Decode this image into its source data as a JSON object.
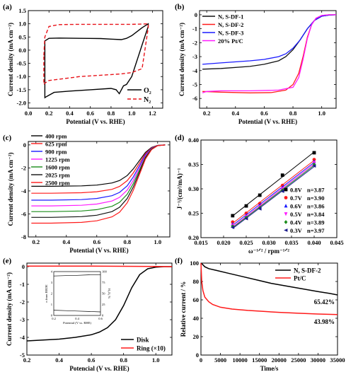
{
  "figure": {
    "label_font_color": "#000000"
  },
  "chart_data": [
    {
      "panel": "(a)",
      "type": "line",
      "xlabel": "Potential (V vs. RHE)",
      "ylabel": "Current density (mA cm⁻²)",
      "xlim": [
        0.0,
        1.3
      ],
      "ylim": [
        -2.2,
        1.5
      ],
      "xticks": [
        0.0,
        0.2,
        0.4,
        0.6,
        0.8,
        1.0,
        1.2
      ],
      "yticks": [
        -2.0,
        -1.5,
        -1.0,
        -0.5,
        0.0,
        0.5,
        1.0,
        1.5
      ],
      "ytick_labels": [
        "-2.0",
        "-1.5",
        "-1.0",
        "-0.5",
        "0.0",
        "0.5",
        "1.0",
        "1.5"
      ],
      "xtick_labels": [
        "0.0",
        "0.2",
        "0.4",
        "0.6",
        "0.8",
        "1.0",
        "1.2"
      ],
      "legend": {
        "position": "bottom-right",
        "entries": [
          "O₂",
          "N₂"
        ]
      },
      "series": [
        {
          "name": "O₂",
          "color": "#000000",
          "dash": false,
          "closed": true,
          "x": [
            0.16,
            0.16,
            0.2,
            0.3,
            0.5,
            0.7,
            0.8,
            0.9,
            0.95,
            1.0,
            1.05,
            1.1,
            1.16,
            1.16,
            1.1,
            1.0,
            0.95,
            0.92,
            0.88,
            0.85,
            0.8,
            0.6,
            0.4,
            0.25,
            0.18,
            0.16
          ],
          "y": [
            0.1,
            0.35,
            0.45,
            0.46,
            0.45,
            0.44,
            0.42,
            0.4,
            0.45,
            0.55,
            0.7,
            0.85,
            1.0,
            0.9,
            0.2,
            -1.0,
            -1.3,
            -1.35,
            -1.65,
            -1.5,
            -1.45,
            -1.5,
            -1.55,
            -1.6,
            -1.75,
            -1.8
          ]
        },
        {
          "name": "N₂",
          "color": "#e8131a",
          "dash": true,
          "closed": true,
          "x": [
            0.15,
            0.16,
            0.2,
            0.3,
            0.5,
            0.7,
            0.9,
            1.0,
            1.1,
            1.16,
            1.16,
            1.1,
            1.0,
            0.9,
            0.7,
            0.5,
            0.3,
            0.2,
            0.16,
            0.15
          ],
          "y": [
            -0.2,
            0.5,
            0.9,
            0.97,
            0.98,
            0.98,
            0.98,
            0.98,
            0.99,
            1.0,
            0.85,
            -0.7,
            -0.85,
            -0.9,
            -0.95,
            -1.0,
            -1.1,
            -1.15,
            -1.25,
            -1.3
          ]
        }
      ]
    },
    {
      "panel": "(b)",
      "type": "line",
      "xlabel": "Potential (V vs. RHE)",
      "ylabel": "Current density (mA cm⁻²)",
      "xlim": [
        0.15,
        1.1
      ],
      "ylim": [
        -6.7,
        0.3
      ],
      "xticks": [
        0.2,
        0.4,
        0.6,
        0.8,
        1.0
      ],
      "xtick_labels": [
        "0.2",
        "0.4",
        "0.6",
        "0.8",
        "1.0"
      ],
      "yticks": [
        -6,
        -5,
        -4,
        -3,
        -2,
        -1,
        0
      ],
      "ytick_labels": [
        "-6",
        "-5",
        "-4",
        "-3",
        "-2",
        "-1",
        "0"
      ],
      "legend": {
        "position": "top-left",
        "entries": [
          "N, S-DF-1",
          "N, S-DF-2",
          "N, S-DF-3",
          "20% Pt/C"
        ]
      },
      "series": [
        {
          "name": "N, S-DF-1",
          "color": "#111111",
          "x": [
            0.17,
            0.3,
            0.5,
            0.6,
            0.7,
            0.75,
            0.8,
            0.85,
            0.9,
            0.95,
            1.0,
            1.05,
            1.1
          ],
          "y": [
            -3.9,
            -3.85,
            -3.7,
            -3.55,
            -3.3,
            -3.0,
            -2.5,
            -1.8,
            -1.0,
            -0.4,
            -0.1,
            -0.02,
            0.0
          ]
        },
        {
          "name": "N, S-DF-2",
          "color": "#ff1a1a",
          "x": [
            0.17,
            0.3,
            0.5,
            0.65,
            0.75,
            0.8,
            0.84,
            0.87,
            0.9,
            0.93,
            0.96,
            1.0,
            1.05,
            1.1
          ],
          "y": [
            -5.5,
            -5.55,
            -5.6,
            -5.58,
            -5.4,
            -5.0,
            -4.2,
            -3.0,
            -1.6,
            -0.7,
            -0.25,
            -0.05,
            0.0,
            0.0
          ]
        },
        {
          "name": "N, S-DF-3",
          "color": "#1a1aff",
          "x": [
            0.17,
            0.3,
            0.5,
            0.6,
            0.7,
            0.75,
            0.8,
            0.85,
            0.9,
            0.95,
            1.0,
            1.05,
            1.1
          ],
          "y": [
            -3.55,
            -3.45,
            -3.3,
            -3.2,
            -3.0,
            -2.8,
            -2.4,
            -1.8,
            -1.0,
            -0.4,
            -0.1,
            -0.02,
            0.0
          ]
        },
        {
          "name": "20% Pt/C",
          "color": "#ff1aff",
          "x": [
            0.17,
            0.2,
            0.3,
            0.5,
            0.7,
            0.8,
            0.84,
            0.87,
            0.9,
            0.93,
            0.96,
            1.0,
            1.05,
            1.1
          ],
          "y": [
            -5.6,
            -5.5,
            -5.45,
            -5.45,
            -5.4,
            -5.2,
            -4.5,
            -3.2,
            -1.7,
            -0.7,
            -0.25,
            -0.05,
            0.0,
            0.0
          ]
        }
      ]
    },
    {
      "panel": "(c)",
      "type": "line",
      "xlabel": "Potential (V vs. RHE)",
      "ylabel": "Current density (mA cm⁻²)",
      "xlim": [
        0.15,
        1.08
      ],
      "ylim": [
        -8,
        0.3
      ],
      "xticks": [
        0.2,
        0.4,
        0.6,
        0.8,
        1.0
      ],
      "xtick_labels": [
        "0.2",
        "0.4",
        "0.6",
        "0.8",
        "1.0"
      ],
      "yticks": [
        -8,
        -6,
        -4,
        -2,
        0
      ],
      "ytick_labels": [
        "-8",
        "-6",
        "-4",
        "-2",
        "0"
      ],
      "legend": {
        "position": "top-left",
        "entries": [
          "400 rpm",
          "625 rpm",
          "900 rpm",
          "1225 rpm",
          "1600 rpm",
          "2025 rpm",
          "2500 rpm"
        ]
      },
      "series": [
        {
          "name": "400 rpm",
          "color": "#000000",
          "plateau": -3.6
        },
        {
          "name": "625 rpm",
          "color": "#ff1a1a",
          "plateau": -4.2
        },
        {
          "name": "900 rpm",
          "color": "#1a1aff",
          "plateau": -4.8
        },
        {
          "name": "1225 rpm",
          "color": "#ff1aff",
          "plateau": -5.3
        },
        {
          "name": "1600 rpm",
          "color": "#1a8c1a",
          "plateau": -5.8
        },
        {
          "name": "2025 rpm",
          "color": "#111111",
          "plateau": -6.3
        },
        {
          "name": "2500 rpm",
          "color": "#ff1a1a",
          "plateau": -6.8
        }
      ],
      "shape": {
        "x": [
          0.17,
          0.3,
          0.5,
          0.6,
          0.7,
          0.75,
          0.8,
          0.84,
          0.88,
          0.92,
          0.96,
          1.0,
          1.05
        ],
        "frac": [
          1.0,
          1.0,
          0.99,
          0.97,
          0.92,
          0.86,
          0.74,
          0.58,
          0.38,
          0.18,
          0.06,
          0.01,
          0.0
        ]
      }
    },
    {
      "panel": "(d)",
      "type": "scatter",
      "xlabel": "ω⁻¹ᐟ² / rpm⁻¹ᐟ²",
      "ylabel": "J⁻¹/(cm²/mA)⁻¹",
      "xlim": [
        0.015,
        0.045
      ],
      "ylim": [
        0.2,
        0.4
      ],
      "xticks": [
        0.015,
        0.02,
        0.025,
        0.03,
        0.035,
        0.04,
        0.045
      ],
      "xtick_labels": [
        "0.015",
        "0.020",
        "0.025",
        "0.030",
        "0.035",
        "0.040",
        "0.045"
      ],
      "yticks": [
        0.2,
        0.25,
        0.3,
        0.35,
        0.4
      ],
      "ytick_labels": [
        "0.20",
        "0.25",
        "0.30",
        "0.35",
        "0.40"
      ],
      "legend": {
        "position": "bottom-right"
      },
      "x": [
        0.022,
        0.025,
        0.028,
        0.033,
        0.04
      ],
      "series": [
        {
          "name": "0.8V",
          "n_label": "n=3.87",
          "color": "#000000",
          "marker": "square",
          "y": [
            0.245,
            0.265,
            0.287,
            0.328,
            0.374
          ]
        },
        {
          "name": "0.7V",
          "n_label": "n=3.90",
          "color": "#ff1a1a",
          "marker": "circle",
          "y": [
            0.232,
            0.25,
            0.27,
            0.307,
            0.36
          ]
        },
        {
          "name": "0.6V",
          "n_label": "n=3.86",
          "color": "#1a1aff",
          "marker": "triangle-up",
          "y": [
            0.228,
            0.246,
            0.266,
            0.303,
            0.356
          ]
        },
        {
          "name": "0.5V",
          "n_label": "n=3.84",
          "color": "#ff1aff",
          "marker": "triangle-down",
          "y": [
            0.225,
            0.243,
            0.263,
            0.3,
            0.353
          ]
        },
        {
          "name": "0.4V",
          "n_label": "n=3.89",
          "color": "#1a8c1a",
          "marker": "diamond",
          "y": [
            0.223,
            0.241,
            0.261,
            0.297,
            0.35
          ]
        },
        {
          "name": "0.3V",
          "n_label": "n=3.97",
          "color": "#1a1a8c",
          "marker": "triangle-left",
          "y": [
            0.221,
            0.239,
            0.259,
            0.295,
            0.347
          ]
        }
      ]
    },
    {
      "panel": "(e)",
      "type": "line",
      "xlabel": "Potencial (V vs. RHE)",
      "ylabel": "Current density (mA cm⁻²)",
      "xlim": [
        0.2,
        1.1
      ],
      "ylim": [
        -5,
        0.2
      ],
      "xticks": [
        0.2,
        0.4,
        0.6,
        0.8,
        1.0
      ],
      "xtick_labels": [
        "0.2",
        "0.4",
        "0.6",
        "0.8",
        "1.0"
      ],
      "yticks": [
        -5,
        -4,
        -3,
        -2,
        -1,
        0
      ],
      "ytick_labels": [
        "-5",
        "-4",
        "-3",
        "-2",
        "-1",
        "0"
      ],
      "legend": {
        "position": "bottom-right",
        "entries": [
          "Disk",
          "Ring (×10)"
        ]
      },
      "series": [
        {
          "name": "Disk",
          "color": "#000000",
          "x": [
            0.2,
            0.3,
            0.4,
            0.5,
            0.6,
            0.65,
            0.7,
            0.75,
            0.8,
            0.85,
            0.9,
            0.95,
            1.0,
            1.05,
            1.1
          ],
          "y": [
            -4.2,
            -4.15,
            -4.1,
            -4.0,
            -3.85,
            -3.7,
            -3.45,
            -3.0,
            -2.2,
            -1.2,
            -0.45,
            -0.12,
            -0.03,
            0.0,
            0.0
          ]
        },
        {
          "name": "Ring (×10)",
          "color": "#ff1a1a",
          "x": [
            0.2,
            0.4,
            0.6,
            0.8,
            1.0,
            1.1
          ],
          "y": [
            0.03,
            0.03,
            0.03,
            0.02,
            0.01,
            0.0
          ]
        }
      ],
      "inset": {
        "xlabel": "Potential (V vs. RHE)",
        "ylabel_left": "n from RRDE",
        "ylabel_right": "H₂O₂ %",
        "xlim": [
          0.2,
          0.6
        ],
        "ylim_left": [
          0,
          4
        ],
        "ylim_right": [
          0,
          100
        ],
        "xticks": [
          0.2,
          0.3,
          0.4,
          0.5,
          0.6
        ],
        "xtick_labels": [
          "0.2",
          "0.3",
          "0.4",
          "0.5",
          "0.6"
        ],
        "yticks_left": [
          0,
          1,
          2,
          3,
          4
        ],
        "ytick_labels_left": [
          "0",
          "1",
          "2",
          "3",
          "4"
        ],
        "yticks_right": [
          0,
          25,
          50,
          75,
          100
        ],
        "ytick_labels_right": [
          "0",
          "25",
          "50",
          "75",
          "100"
        ],
        "n_series": {
          "x": [
            0.2,
            0.3,
            0.4,
            0.5,
            0.6
          ],
          "y": [
            3.6,
            3.63,
            3.66,
            3.7,
            3.72
          ]
        },
        "h2o2_series": {
          "x": [
            0.2,
            0.3,
            0.4,
            0.5,
            0.6
          ],
          "y": [
            12,
            11,
            10,
            9,
            8
          ]
        }
      }
    },
    {
      "panel": "(f)",
      "type": "line",
      "xlabel": "Time/s",
      "ylabel": "Relative current / %",
      "xlim": [
        0,
        35000
      ],
      "ylim": [
        0,
        100
      ],
      "xticks": [
        0,
        5000,
        10000,
        15000,
        20000,
        25000,
        30000,
        35000
      ],
      "xtick_labels": [
        "0",
        "5000",
        "10000",
        "15000",
        "20000",
        "25000",
        "30000",
        "35000"
      ],
      "yticks": [
        0,
        20,
        40,
        60,
        80,
        100
      ],
      "ytick_labels": [
        "0",
        "20",
        "40",
        "60",
        "80",
        "100"
      ],
      "legend": {
        "position": "top-right",
        "entries": [
          "N, S-DF-2",
          "Pt/C"
        ]
      },
      "annotations": [
        "65.42%",
        "43.98%"
      ],
      "series": [
        {
          "name": "N, S-DF-2",
          "color": "#000000",
          "x": [
            0,
            300,
            1000,
            2000,
            4000,
            7000,
            10000,
            14000,
            18000,
            22000,
            26000,
            30000,
            33000,
            35000
          ],
          "y": [
            100,
            99,
            96,
            94,
            92,
            89,
            86,
            82,
            78,
            75,
            72,
            69,
            67,
            65.4
          ]
        },
        {
          "name": "Pt/C",
          "color": "#ff1a1a",
          "x": [
            0,
            200,
            500,
            1000,
            2000,
            3000,
            5000,
            8000,
            12000,
            16000,
            20000,
            25000,
            30000,
            35000
          ],
          "y": [
            100,
            80,
            70,
            63,
            58,
            55,
            52,
            50,
            48.5,
            47.5,
            46.5,
            45.5,
            44.6,
            44.0
          ]
        }
      ]
    }
  ]
}
